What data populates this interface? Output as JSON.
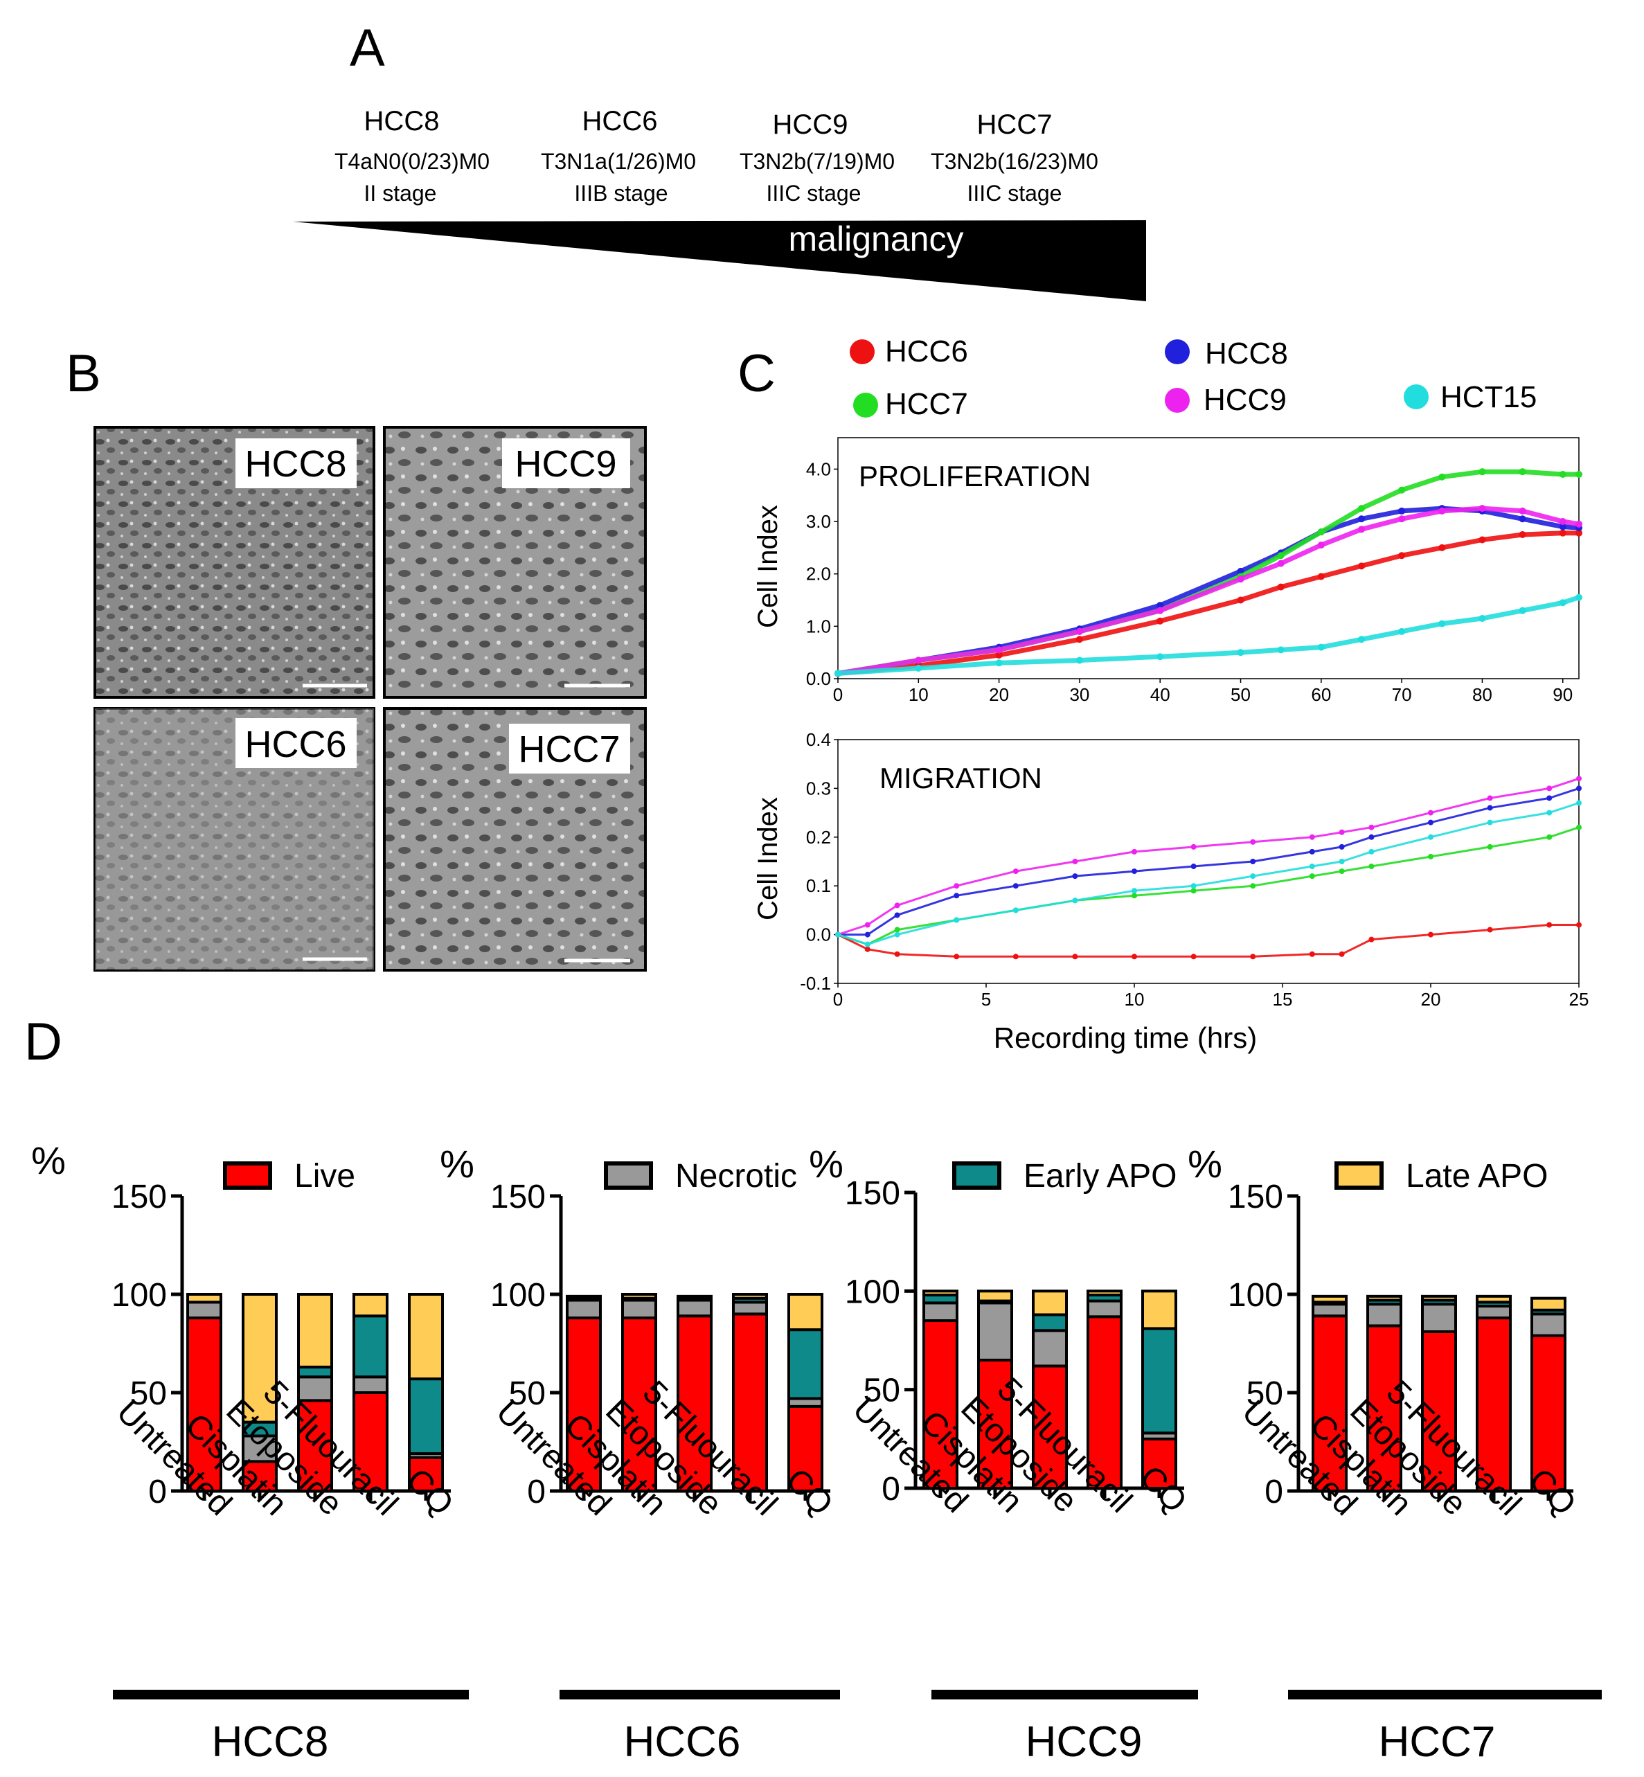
{
  "panel_letters": {
    "a": "A",
    "b": "B",
    "c": "C",
    "d": "D"
  },
  "panel_a": {
    "tumors": [
      {
        "name": "HCC8",
        "tnm": "T4aN0(0/23)M0",
        "stage": "II stage"
      },
      {
        "name": "HCC6",
        "tnm": "T3N1a(1/26)M0",
        "stage": "IIIB stage"
      },
      {
        "name": "HCC9",
        "tnm": "T3N2b(7/19)M0",
        "stage": "IIIC stage"
      },
      {
        "name": "HCC7",
        "tnm": "T3N2b(16/23)M0",
        "stage": "IIIC stage"
      }
    ],
    "wedge_label": "malignancy"
  },
  "panel_b": {
    "micrograph_labels": [
      "HCC8",
      "HCC9",
      "HCC6",
      "HCC7"
    ]
  },
  "colors": {
    "HCC6": "#ee1111",
    "HCC7": "#22dd22",
    "HCC8": "#2020dd",
    "HCC9": "#ee22ee",
    "HCT15": "#22dddd",
    "live": "#ff0000",
    "necrotic": "#999999",
    "early_apo": "#0e8a8a",
    "late_apo": "#ffcc55"
  },
  "panel_c": {
    "legend": [
      "HCC6",
      "HCC8",
      "HCC7",
      "HCC9",
      "HCT15"
    ]
  },
  "chart_data": [
    {
      "type": "line",
      "title": "PROLIFERATION",
      "xlabel": "",
      "ylabel": "Cell Index",
      "xlim": [
        0,
        92
      ],
      "ylim": [
        0,
        4.6
      ],
      "xticks": [
        "0",
        "10",
        "20",
        "30",
        "40",
        "50",
        "60",
        "70",
        "80",
        "90"
      ],
      "yticks": [
        "0.0",
        "1.0",
        "2.0",
        "3.0",
        "4.0"
      ],
      "x": [
        0,
        10,
        20,
        30,
        40,
        50,
        55,
        60,
        65,
        70,
        75,
        80,
        85,
        90,
        92
      ],
      "series": [
        {
          "name": "HCC6",
          "values": [
            0.1,
            0.25,
            0.45,
            0.75,
            1.1,
            1.5,
            1.75,
            1.95,
            2.15,
            2.35,
            2.5,
            2.65,
            2.75,
            2.78,
            2.78
          ]
        },
        {
          "name": "HCC8",
          "values": [
            0.1,
            0.35,
            0.6,
            0.95,
            1.4,
            2.05,
            2.4,
            2.8,
            3.05,
            3.2,
            3.25,
            3.2,
            3.05,
            2.9,
            2.88
          ]
        },
        {
          "name": "HCC7",
          "values": [
            0.1,
            0.35,
            0.55,
            0.9,
            1.3,
            1.95,
            2.35,
            2.8,
            3.25,
            3.6,
            3.85,
            3.95,
            3.95,
            3.9,
            3.9
          ]
        },
        {
          "name": "HCC9",
          "values": [
            0.1,
            0.35,
            0.55,
            0.9,
            1.3,
            1.9,
            2.2,
            2.55,
            2.85,
            3.05,
            3.2,
            3.25,
            3.2,
            3.0,
            2.95
          ]
        },
        {
          "name": "HCT15",
          "values": [
            0.1,
            0.2,
            0.3,
            0.35,
            0.42,
            0.5,
            0.55,
            0.6,
            0.75,
            0.9,
            1.05,
            1.15,
            1.3,
            1.45,
            1.55
          ]
        }
      ]
    },
    {
      "type": "line",
      "title": "MIGRATION",
      "xlabel": "Recording time (hrs)",
      "ylabel": "Cell Index",
      "xlim": [
        0,
        25
      ],
      "ylim": [
        -0.1,
        0.4
      ],
      "xticks": [
        "0",
        "5",
        "10",
        "15",
        "20",
        "25"
      ],
      "yticks": [
        "-0.1",
        "0.0",
        "0.1",
        "0.2",
        "0.3",
        "0.4"
      ],
      "x": [
        0,
        1,
        2,
        4,
        6,
        8,
        10,
        12,
        14,
        16,
        17,
        18,
        20,
        22,
        24,
        25
      ],
      "series": [
        {
          "name": "HCC6",
          "values": [
            0.0,
            -0.03,
            -0.04,
            -0.045,
            -0.045,
            -0.045,
            -0.045,
            -0.045,
            -0.045,
            -0.04,
            -0.04,
            -0.01,
            0.0,
            0.01,
            0.02,
            0.02
          ]
        },
        {
          "name": "HCC8",
          "values": [
            0.0,
            0.0,
            0.04,
            0.08,
            0.1,
            0.12,
            0.13,
            0.14,
            0.15,
            0.17,
            0.18,
            0.2,
            0.23,
            0.26,
            0.28,
            0.3
          ]
        },
        {
          "name": "HCC7",
          "values": [
            0.0,
            -0.02,
            0.01,
            0.03,
            0.05,
            0.07,
            0.08,
            0.09,
            0.1,
            0.12,
            0.13,
            0.14,
            0.16,
            0.18,
            0.2,
            0.22
          ]
        },
        {
          "name": "HCC9",
          "values": [
            0.0,
            0.02,
            0.06,
            0.1,
            0.13,
            0.15,
            0.17,
            0.18,
            0.19,
            0.2,
            0.21,
            0.22,
            0.25,
            0.28,
            0.3,
            0.32
          ]
        },
        {
          "name": "HCT15",
          "values": [
            0.0,
            -0.02,
            0.0,
            0.03,
            0.05,
            0.07,
            0.09,
            0.1,
            0.12,
            0.14,
            0.15,
            0.17,
            0.2,
            0.23,
            0.25,
            0.27
          ]
        }
      ]
    },
    {
      "type": "bar",
      "stacked": true,
      "title": "HCC8",
      "ylabel": "%",
      "ylim": [
        0,
        150
      ],
      "yticks": [
        "0",
        "50",
        "100",
        "150"
      ],
      "categories": [
        "Untreated",
        "Cisplatin",
        "Etoposide",
        "5-Fluouracil",
        "CQ"
      ],
      "series": [
        {
          "name": "Live",
          "values": [
            88,
            15,
            46,
            50,
            17
          ]
        },
        {
          "name": "Necrotic",
          "values": [
            8,
            13,
            12,
            8,
            2
          ]
        },
        {
          "name": "Early APO",
          "values": [
            0,
            7,
            5,
            31,
            38
          ]
        },
        {
          "name": "Late APO",
          "values": [
            4,
            65,
            37,
            11,
            43
          ]
        }
      ]
    },
    {
      "type": "bar",
      "stacked": true,
      "title": "HCC6",
      "ylabel": "%",
      "ylim": [
        0,
        150
      ],
      "yticks": [
        "0",
        "50",
        "100",
        "150"
      ],
      "categories": [
        "Untreated",
        "Cisplatin",
        "Etoposide",
        "5-Fluouracil",
        "CQ"
      ],
      "series": [
        {
          "name": "Live",
          "values": [
            88,
            88,
            89,
            90,
            43
          ]
        },
        {
          "name": "Necrotic",
          "values": [
            9,
            9,
            8,
            6,
            4
          ]
        },
        {
          "name": "Early APO",
          "values": [
            1,
            1,
            1,
            2,
            35
          ]
        },
        {
          "name": "Late APO",
          "values": [
            1,
            2,
            1,
            2,
            18
          ]
        }
      ]
    },
    {
      "type": "bar",
      "stacked": true,
      "title": "HCC9",
      "ylabel": "%",
      "ylim": [
        0,
        150
      ],
      "yticks": [
        "0",
        "50",
        "100",
        "150"
      ],
      "categories": [
        "Untreated",
        "Cisplatin",
        "Etoposide",
        "5-Fluouracil",
        "CQ"
      ],
      "series": [
        {
          "name": "Live",
          "values": [
            85,
            65,
            62,
            87,
            25
          ]
        },
        {
          "name": "Necrotic",
          "values": [
            9,
            29,
            18,
            8,
            3
          ]
        },
        {
          "name": "Early APO",
          "values": [
            4,
            1,
            8,
            3,
            53
          ]
        },
        {
          "name": "Late APO",
          "values": [
            2,
            5,
            12,
            2,
            19
          ]
        }
      ]
    },
    {
      "type": "bar",
      "stacked": true,
      "title": "HCC7",
      "ylabel": "%",
      "ylim": [
        0,
        150
      ],
      "yticks": [
        "0",
        "50",
        "100",
        "150"
      ],
      "categories": [
        "Untreated",
        "Cisplatin",
        "Etoposide",
        "5-Fluouracil",
        "CQ"
      ],
      "series": [
        {
          "name": "Live",
          "values": [
            89,
            84,
            81,
            88,
            79
          ]
        },
        {
          "name": "Necrotic",
          "values": [
            6,
            11,
            14,
            6,
            11
          ]
        },
        {
          "name": "Early APO",
          "values": [
            1,
            2,
            2,
            2,
            2
          ]
        },
        {
          "name": "Late APO",
          "values": [
            3,
            2,
            2,
            3,
            6
          ]
        }
      ]
    }
  ],
  "panel_d": {
    "legend": [
      "Live",
      "Necrotic",
      "Early APO",
      "Late APO"
    ]
  }
}
